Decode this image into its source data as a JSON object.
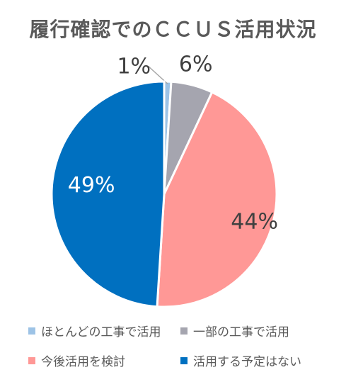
{
  "chart_data": {
    "type": "pie",
    "title": "履行確認でのＣＣＵＳ活用状況",
    "start_angle_deg": 0,
    "slices": [
      {
        "label": "ほとんどの工事で活用",
        "value": 1,
        "display": "1%",
        "color": "#9DC3E6"
      },
      {
        "label": "一部の工事で活用",
        "value": 6,
        "display": "6%",
        "color": "#A5A5AF"
      },
      {
        "label": "今後活用を検討",
        "value": 44,
        "display": "44%",
        "color": "#FF9896"
      },
      {
        "label": "活用する予定はない",
        "value": 49,
        "display": "49%",
        "color": "#0070C0"
      }
    ],
    "legend_position": "bottom"
  }
}
